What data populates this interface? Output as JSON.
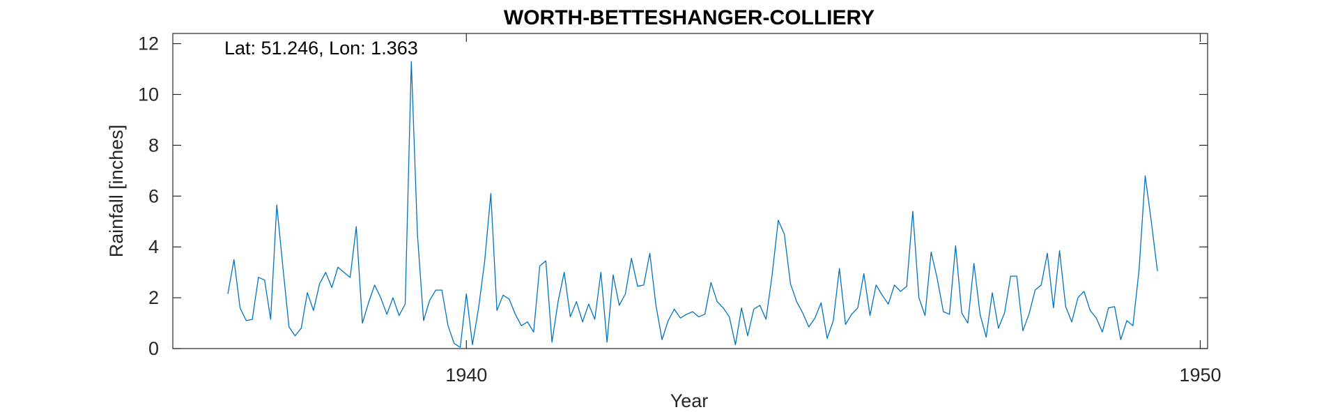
{
  "chart_data": {
    "type": "line",
    "title": "WORTH-BETTESHANGER-COLLIERY",
    "xlabel": "Year",
    "ylabel": "Rainfall [inches]",
    "annotation": "Lat: 51.246, Lon: 1.363",
    "xlim": [
      1936.0,
      1950.1
    ],
    "ylim": [
      0,
      12.4
    ],
    "xticks": [
      1940,
      1950
    ],
    "yticks": [
      0,
      2,
      4,
      6,
      8,
      10,
      12
    ],
    "grid": false,
    "line_color": "#0072BD",
    "series": [
      {
        "x_start": 1936.75,
        "x_step": 0.08333,
        "values": [
          2.15,
          3.5,
          1.6,
          1.1,
          1.15,
          2.8,
          2.7,
          1.15,
          5.65,
          3.2,
          0.85,
          0.5,
          0.8,
          2.2,
          1.5,
          2.55,
          3.0,
          2.4,
          3.2,
          3.0,
          2.8,
          4.8,
          1.0,
          1.8,
          2.5,
          2.0,
          1.35,
          2.0,
          1.3,
          1.75,
          11.3,
          4.5,
          1.1,
          1.9,
          2.3,
          2.3,
          0.9,
          0.2,
          0.05,
          2.15,
          0.15,
          1.6,
          3.45,
          6.1,
          1.5,
          2.1,
          1.95,
          1.35,
          0.9,
          1.05,
          0.65,
          3.25,
          3.45,
          0.25,
          1.85,
          3.0,
          1.25,
          1.85,
          1.05,
          1.75,
          1.15,
          3.0,
          0.25,
          2.9,
          1.7,
          2.15,
          3.55,
          2.45,
          2.5,
          3.75,
          1.7,
          0.35,
          1.1,
          1.55,
          1.2,
          1.35,
          1.45,
          1.25,
          1.35,
          2.6,
          1.85,
          1.6,
          1.25,
          0.15,
          1.6,
          0.5,
          1.55,
          1.7,
          1.15,
          2.9,
          5.05,
          4.5,
          2.55,
          1.85,
          1.4,
          0.85,
          1.2,
          1.8,
          0.4,
          1.1,
          3.15,
          0.95,
          1.35,
          1.6,
          2.95,
          1.3,
          2.5,
          2.1,
          1.75,
          2.5,
          2.25,
          2.45,
          5.4,
          2.0,
          1.3,
          3.8,
          2.75,
          1.45,
          1.35,
          4.05,
          1.4,
          1.0,
          3.35,
          1.35,
          0.45,
          2.2,
          0.8,
          1.4,
          2.85,
          2.85,
          0.7,
          1.35,
          2.3,
          2.5,
          3.75,
          1.6,
          3.85,
          1.65,
          1.05,
          2.0,
          2.25,
          1.5,
          1.2,
          0.65,
          1.6,
          1.65,
          0.35,
          1.1,
          0.9,
          3.1,
          6.8,
          5.0,
          3.05
        ]
      }
    ]
  }
}
